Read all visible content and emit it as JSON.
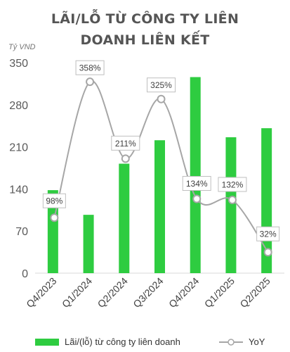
{
  "chart_data": {
    "type": "bar",
    "title_lines": [
      "LÃI/LỖ TỪ CÔNG TY LIÊN",
      "DOANH LIÊN KẾT"
    ],
    "unit_label": "Tỷ VND",
    "categories": [
      "Q4/2023",
      "Q1/2024",
      "Q2/2024",
      "Q3/2024",
      "Q4/2024",
      "Q1/2025",
      "Q2/2025"
    ],
    "ylim": [
      0,
      350
    ],
    "yticks": [
      "0",
      "70",
      "140",
      "210",
      "280",
      "350"
    ],
    "grid": false,
    "legend_position": "bottom",
    "series": [
      {
        "name": "Lãi/(lỗ) từ công ty liên doanh",
        "kind": "bar",
        "color": "#2ecc40",
        "values": [
          138,
          97,
          182,
          221,
          326,
          226,
          241
        ]
      },
      {
        "name": "YoY",
        "kind": "line",
        "axis": "secondary",
        "color": "#a6a6a6",
        "values": [
          98,
          358,
          211,
          325,
          134,
          132,
          32
        ],
        "labels": [
          "98%",
          "358%",
          "211%",
          "325%",
          "134%",
          "132%",
          "32%"
        ]
      }
    ]
  }
}
